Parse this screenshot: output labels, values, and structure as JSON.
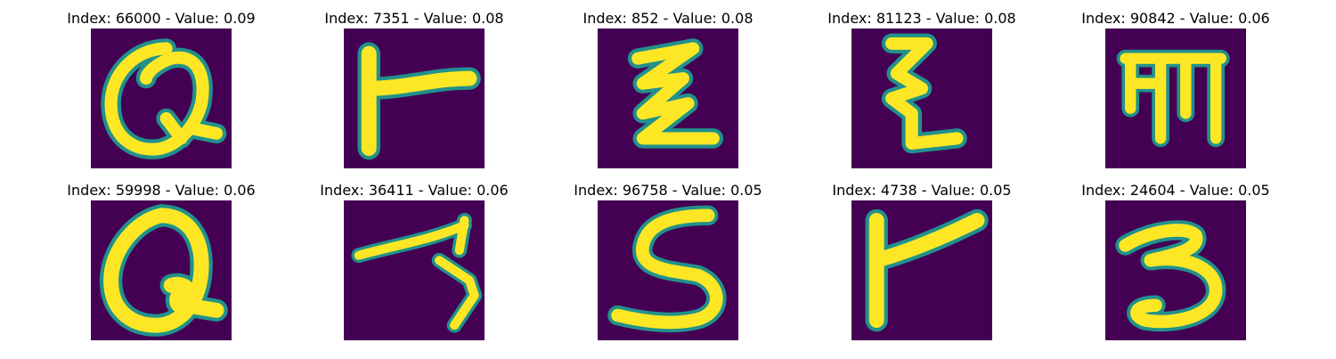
{
  "colors": {
    "background": "#440154",
    "stroke_core": "#fde725",
    "stroke_edge": "#21918c"
  },
  "panels": [
    {
      "title": "Index: 66000 - Value: 0.09",
      "glyph": "looped Q-like character"
    },
    {
      "title": "Index: 7351 - Value: 0.08",
      "glyph": "vertical stem with horizontal bar"
    },
    {
      "title": "Index: 852 - Value: 0.08",
      "glyph": "zigzag Z-like character"
    },
    {
      "title": "Index: 81123 - Value: 0.08",
      "glyph": "zigzag stroke with tail"
    },
    {
      "title": "Index: 90842 - Value: 0.06",
      "glyph": "comb-like character with three prongs"
    },
    {
      "title": "Index: 59998 - Value: 0.06",
      "glyph": "looped Q-like character"
    },
    {
      "title": "Index: 36411 - Value: 0.06",
      "glyph": "long slanted stroke with descender"
    },
    {
      "title": "Index: 96758 - Value: 0.05",
      "glyph": "S-shaped character"
    },
    {
      "title": "Index: 4738 - Value: 0.05",
      "glyph": "vertical stem with slanted bar"
    },
    {
      "title": "Index: 24604 - Value: 0.05",
      "glyph": "3-shaped character"
    }
  ]
}
